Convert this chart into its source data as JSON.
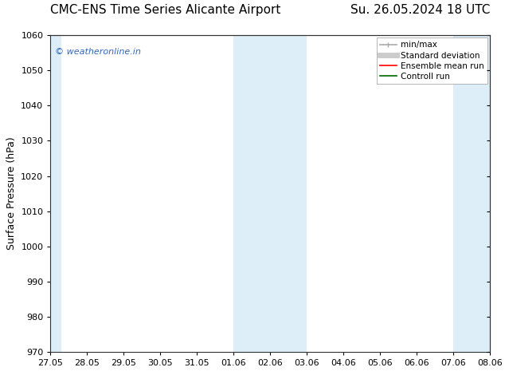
{
  "title_left": "CMC-ENS Time Series Alicante Airport",
  "title_right": "Su. 26.05.2024 18 UTC",
  "ylabel": "Surface Pressure (hPa)",
  "ylim": [
    970,
    1060
  ],
  "yticks": [
    970,
    980,
    990,
    1000,
    1010,
    1020,
    1030,
    1040,
    1050,
    1060
  ],
  "xtick_labels": [
    "27.05",
    "28.05",
    "29.05",
    "30.05",
    "31.05",
    "01.06",
    "02.06",
    "03.06",
    "04.06",
    "05.06",
    "06.06",
    "07.06",
    "08.06"
  ],
  "xlim": [
    0,
    12
  ],
  "shaded_bands": [
    {
      "x_start": 0.0,
      "x_end": 0.3
    },
    {
      "x_start": 5.0,
      "x_end": 7.0
    },
    {
      "x_start": 11.0,
      "x_end": 12.0
    }
  ],
  "shade_color": "#ddeef8",
  "background_color": "#ffffff",
  "watermark_text": "© weatheronline.in",
  "watermark_color": "#3366bb",
  "legend_items": [
    {
      "label": "min/max",
      "color": "#aaaaaa",
      "lw": 1.2
    },
    {
      "label": "Standard deviation",
      "color": "#cccccc",
      "lw": 5
    },
    {
      "label": "Ensemble mean run",
      "color": "#ff0000",
      "lw": 1.2
    },
    {
      "label": "Controll run",
      "color": "#006600",
      "lw": 1.2
    }
  ],
  "title_fontsize": 11,
  "tick_fontsize": 8,
  "ylabel_fontsize": 9,
  "legend_fontsize": 7.5
}
